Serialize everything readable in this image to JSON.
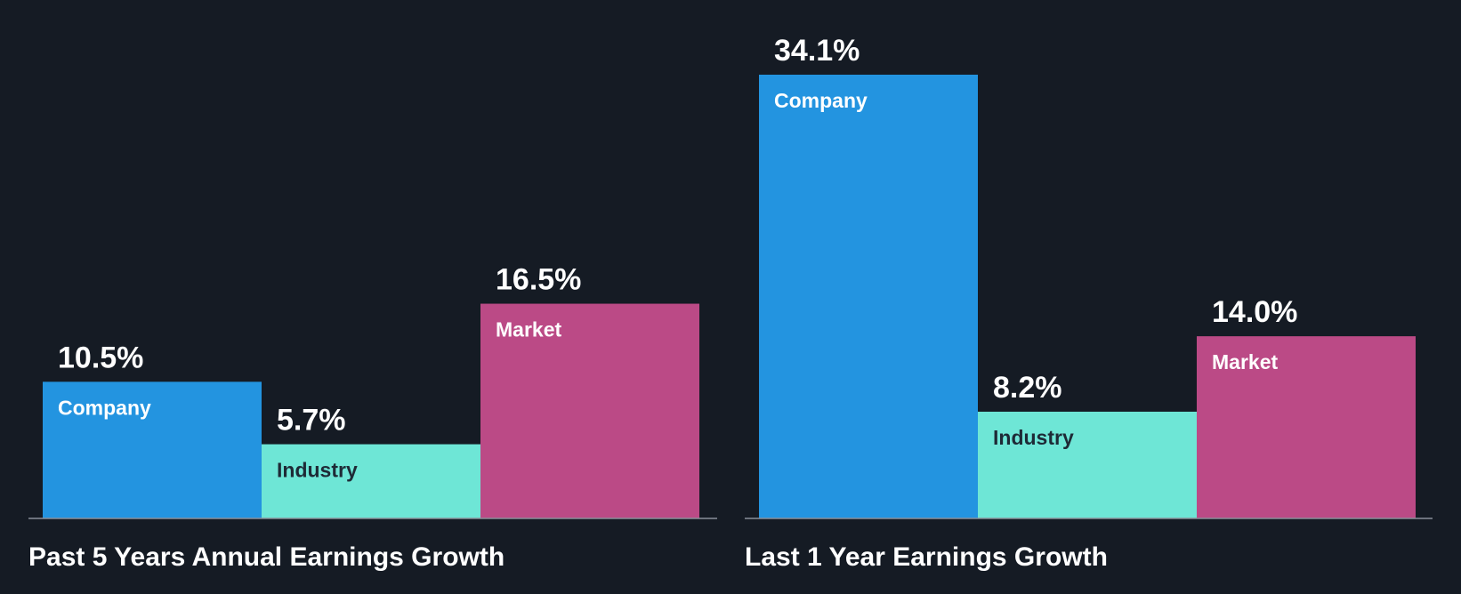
{
  "colors": {
    "background": "#151b24",
    "company": "#2394e0",
    "industry": "#6ee6d6",
    "market": "#bb4a86",
    "baseline": "#8a9099",
    "label_light": "#ffffff",
    "label_dark": "#1e2a36"
  },
  "chart_data": [
    {
      "type": "bar",
      "title": "Past 5 Years Annual Earnings Growth",
      "categories": [
        "Company",
        "Industry",
        "Market"
      ],
      "values": [
        10.5,
        5.7,
        16.5
      ],
      "value_labels": [
        "10.5%",
        "5.7%",
        "16.5%"
      ],
      "unit": "%",
      "ylim": [
        0,
        34.1
      ],
      "grid": false,
      "legend": "none"
    },
    {
      "type": "bar",
      "title": "Last 1 Year Earnings Growth",
      "categories": [
        "Company",
        "Industry",
        "Market"
      ],
      "values": [
        34.1,
        8.2,
        14.0
      ],
      "value_labels": [
        "34.1%",
        "8.2%",
        "14.0%"
      ],
      "unit": "%",
      "ylim": [
        0,
        34.1
      ],
      "grid": false,
      "legend": "none"
    }
  ]
}
